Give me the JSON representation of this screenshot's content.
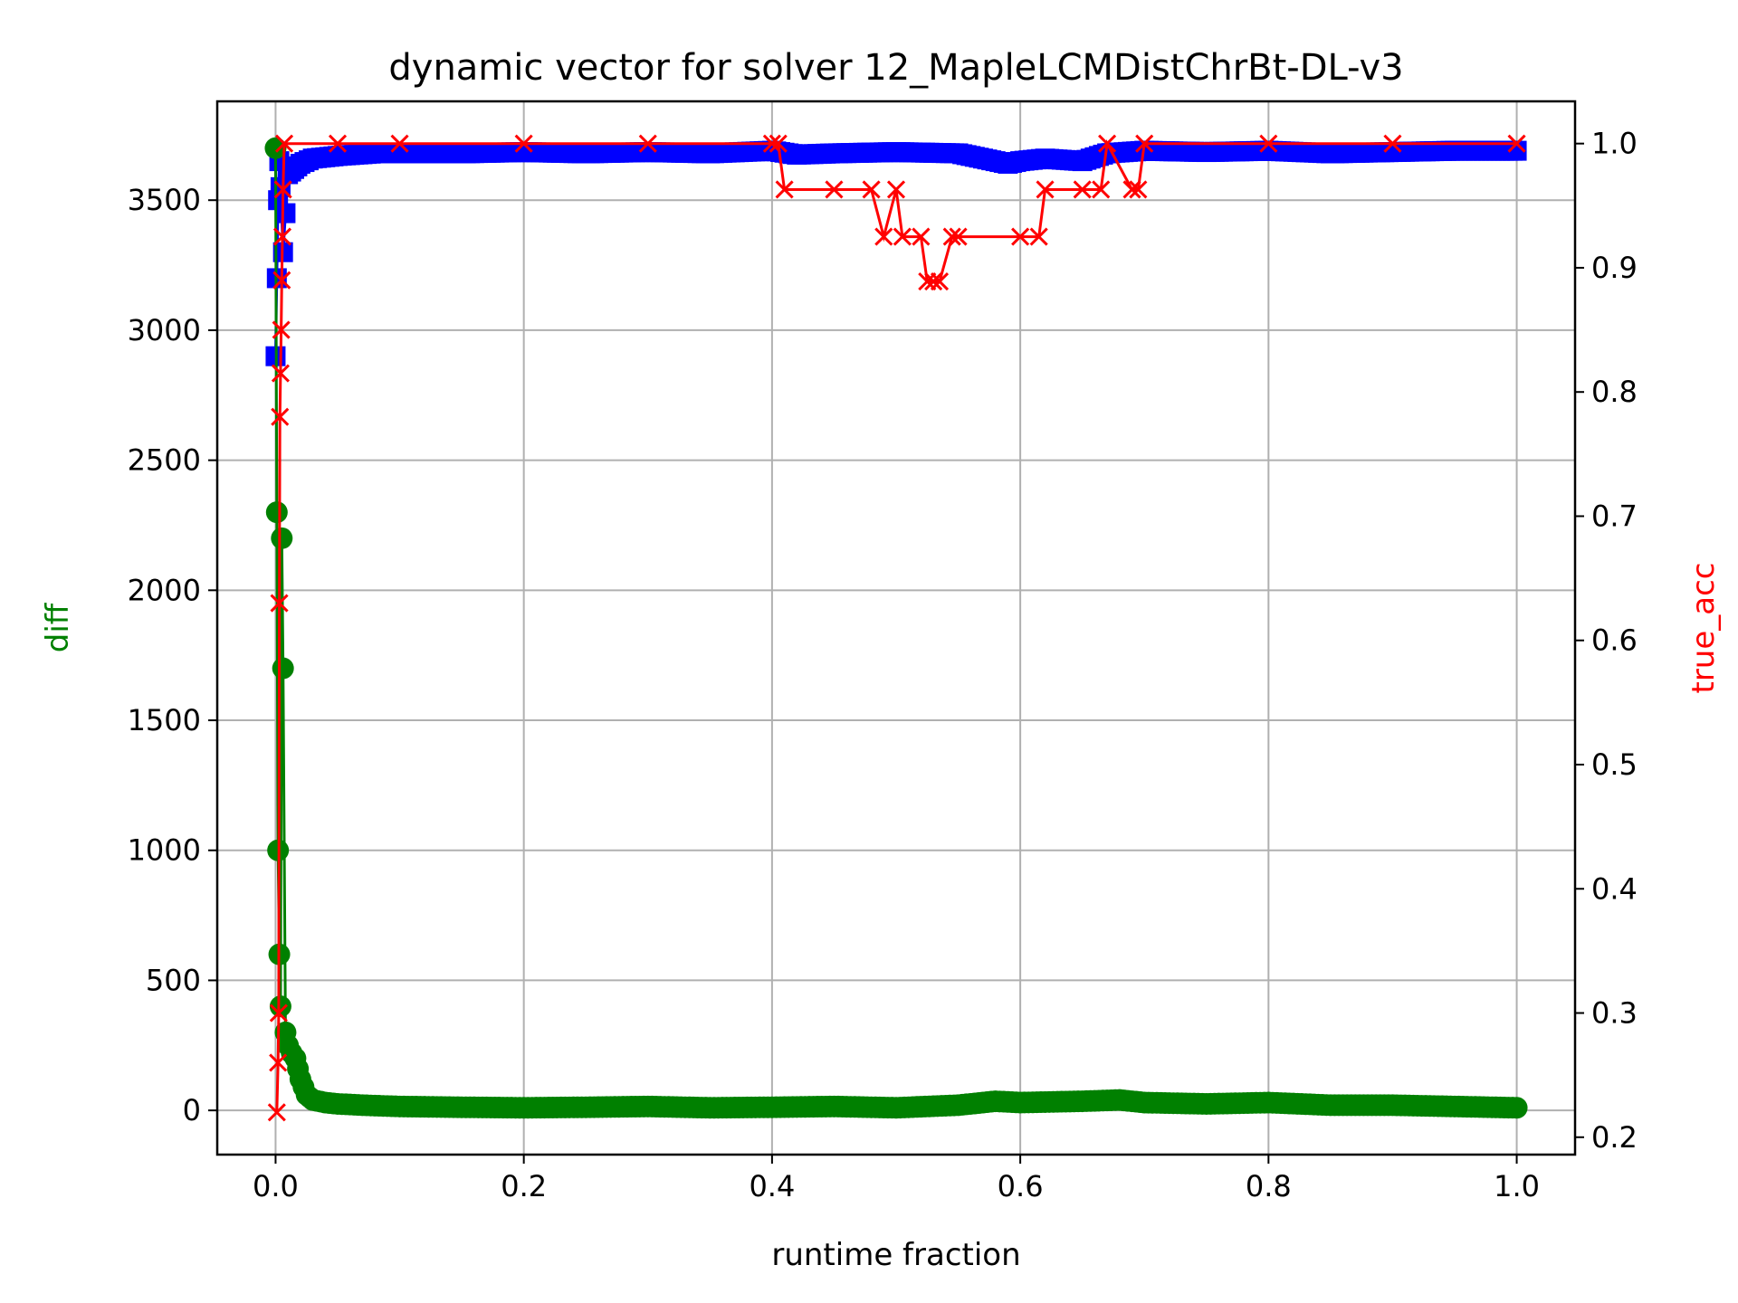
{
  "chart_data": {
    "type": "line",
    "title": "dynamic vector for solver 12_MapleLCMDistChrBt-DL-v3",
    "xlabel": "runtime fraction",
    "ylabel": "diff",
    "ylabel_right": "true_acc",
    "xlim": [
      -0.047,
      1.047
    ],
    "ylim": [
      -170,
      3880
    ],
    "ylim_right": [
      0.186,
      1.034
    ],
    "x_ticks": [
      0.0,
      0.2,
      0.4,
      0.6,
      0.8,
      1.0
    ],
    "x_tick_labels": [
      "0.0",
      "0.2",
      "0.4",
      "0.6",
      "0.8",
      "1.0"
    ],
    "y_ticks": [
      0,
      500,
      1000,
      1500,
      2000,
      2500,
      3000,
      3500
    ],
    "y_tick_labels": [
      "0",
      "500",
      "1000",
      "1500",
      "2000",
      "2500",
      "3000",
      "3500"
    ],
    "y_ticks_right": [
      0.2,
      0.3,
      0.4,
      0.5,
      0.6,
      0.7,
      0.8,
      0.9,
      1.0
    ],
    "y_tick_labels_right": [
      "0.2",
      "0.3",
      "0.4",
      "0.5",
      "0.6",
      "0.7",
      "0.8",
      "0.9",
      "1.0"
    ],
    "grid": true,
    "colors": {
      "diff": "#008000",
      "upper": "#0000ff",
      "true_acc": "#ff0000",
      "ylabel": "#008000",
      "ylabel_right": "#ff0000"
    },
    "series": [
      {
        "axis": "left",
        "marker": "square",
        "color": "#0000ff",
        "x": [
          0.0,
          0.001,
          0.002,
          0.003,
          0.004,
          0.006,
          0.01,
          0.015,
          0.02,
          0.03,
          0.05,
          0.08,
          0.1,
          0.15,
          0.2,
          0.25,
          0.3,
          0.35,
          0.4,
          0.42,
          0.45,
          0.5,
          0.55,
          0.57,
          0.59,
          0.6,
          0.62,
          0.65,
          0.67,
          0.7,
          0.75,
          0.8,
          0.85,
          0.9,
          0.95,
          1.0
        ],
        "y": [
          2900,
          3200,
          3500,
          3650,
          3550,
          3300,
          3600,
          3620,
          3640,
          3660,
          3670,
          3680,
          3680,
          3680,
          3685,
          3680,
          3685,
          3680,
          3690,
          3675,
          3680,
          3685,
          3680,
          3660,
          3640,
          3650,
          3660,
          3650,
          3680,
          3690,
          3685,
          3690,
          3680,
          3685,
          3690,
          3690
        ]
      },
      {
        "axis": "left",
        "marker": "circle",
        "color": "#008000",
        "x": [
          0.0,
          0.001,
          0.002,
          0.003,
          0.004,
          0.005,
          0.006,
          0.008,
          0.01,
          0.013,
          0.016,
          0.02,
          0.025,
          0.03,
          0.04,
          0.05,
          0.07,
          0.1,
          0.15,
          0.2,
          0.25,
          0.3,
          0.35,
          0.4,
          0.45,
          0.5,
          0.55,
          0.58,
          0.6,
          0.65,
          0.68,
          0.7,
          0.75,
          0.8,
          0.85,
          0.9,
          0.95,
          1.0
        ],
        "y": [
          3700,
          2300,
          1000,
          600,
          400,
          2200,
          1700,
          300,
          250,
          220,
          200,
          120,
          60,
          40,
          30,
          25,
          20,
          15,
          12,
          10,
          12,
          15,
          10,
          12,
          15,
          10,
          20,
          35,
          30,
          35,
          40,
          30,
          25,
          30,
          20,
          20,
          15,
          10
        ]
      },
      {
        "axis": "right",
        "marker": "x",
        "color": "#ff0000",
        "x": [
          0.001,
          0.002,
          0.0025,
          0.003,
          0.0035,
          0.004,
          0.0045,
          0.005,
          0.0055,
          0.006,
          0.007,
          0.05,
          0.1,
          0.2,
          0.3,
          0.4,
          0.405,
          0.41,
          0.45,
          0.48,
          0.49,
          0.5,
          0.505,
          0.52,
          0.525,
          0.53,
          0.535,
          0.545,
          0.55,
          0.6,
          0.615,
          0.62,
          0.65,
          0.665,
          0.67,
          0.69,
          0.695,
          0.7,
          0.8,
          0.9,
          1.0
        ],
        "y": [
          0.22,
          0.26,
          0.3,
          0.63,
          0.78,
          0.815,
          0.85,
          0.89,
          0.925,
          0.963,
          1.0,
          1.0,
          1.0,
          1.0,
          1.0,
          1.0,
          1.0,
          0.963,
          0.963,
          0.963,
          0.925,
          0.963,
          0.925,
          0.925,
          0.889,
          0.889,
          0.889,
          0.925,
          0.925,
          0.925,
          0.925,
          0.963,
          0.963,
          0.963,
          1.0,
          0.963,
          0.963,
          1.0,
          1.0,
          1.0,
          1.0
        ]
      }
    ]
  }
}
